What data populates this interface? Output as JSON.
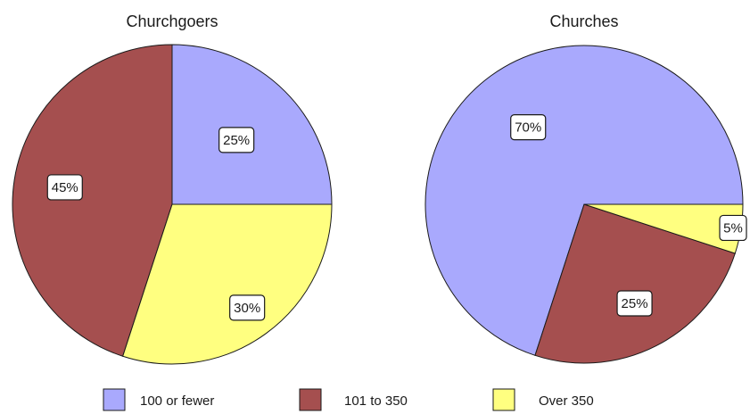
{
  "chart_data": [
    {
      "type": "pie",
      "title": "Churchgoers",
      "categories": [
        "100 or fewer",
        "101 to 350",
        "Over 350"
      ],
      "values": [
        25,
        45,
        30
      ],
      "labels": [
        "25%",
        "45%",
        "30%"
      ],
      "legend_position": "bottom"
    },
    {
      "type": "pie",
      "title": "Churches",
      "categories": [
        "100 or fewer",
        "101 to 350",
        "Over 350"
      ],
      "values": [
        70,
        25,
        5
      ],
      "labels": [
        "70%",
        "25%",
        "5%"
      ],
      "legend_position": "bottom"
    }
  ],
  "legend": {
    "items": [
      {
        "label": "100 or fewer",
        "color": "#a9a9fd"
      },
      {
        "label": "101 to 350",
        "color": "#a54f4f"
      },
      {
        "label": "Over 350",
        "color": "#ffff80"
      }
    ]
  }
}
